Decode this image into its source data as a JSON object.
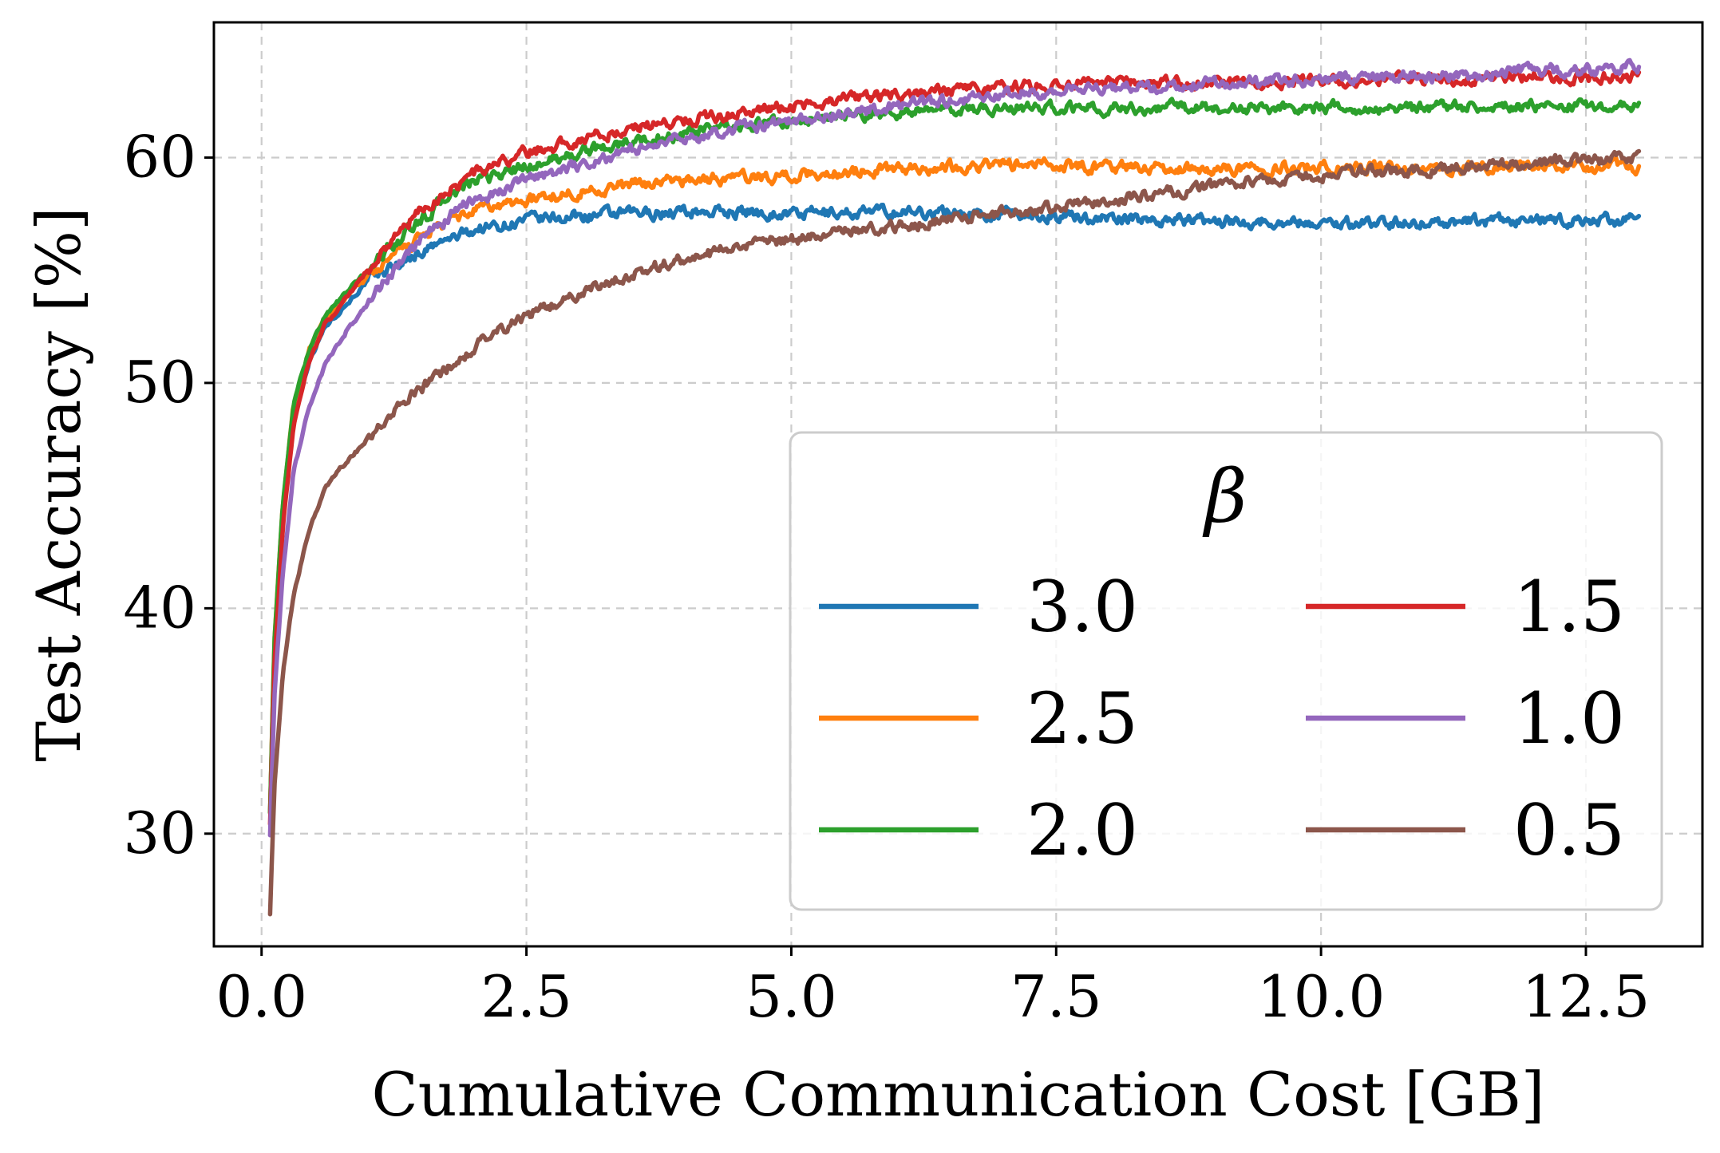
{
  "chart_data": {
    "type": "line",
    "title": "",
    "xlabel": "Cumulative Communication Cost [GB]",
    "ylabel": "Test Accuracy [%]",
    "xlim": [
      -0.45,
      13.6
    ],
    "ylim": [
      25,
      66
    ],
    "xticks": [
      0.0,
      2.5,
      5.0,
      7.5,
      10.0,
      12.5
    ],
    "xtick_labels": [
      "0.0",
      "2.5",
      "5.0",
      "7.5",
      "10.0",
      "12.5"
    ],
    "yticks": [
      30,
      40,
      50,
      60
    ],
    "ytick_labels": [
      "30",
      "40",
      "50",
      "60"
    ],
    "grid": true,
    "legend": {
      "title": "β",
      "position": "lower-right",
      "columns": 2
    },
    "x": [
      0.08,
      0.12,
      0.2,
      0.3,
      0.45,
      0.6,
      0.8,
      1.0,
      1.25,
      1.5,
      1.75,
      2.0,
      2.5,
      3.0,
      3.5,
      4.0,
      4.5,
      5.0,
      6.0,
      7.0,
      8.0,
      9.0,
      10.0,
      11.0,
      12.0,
      13.0
    ],
    "series": [
      {
        "name": "3.0",
        "color": "#1f77b4",
        "values": [
          31,
          38,
          44,
          48.5,
          51,
          52.5,
          53.5,
          54.5,
          55.2,
          55.8,
          56.3,
          56.8,
          57.2,
          57.4,
          57.5,
          57.6,
          57.6,
          57.5,
          57.6,
          57.5,
          57.3,
          57.2,
          57.1,
          57.1,
          57.2,
          57.2
        ]
      },
      {
        "name": "2.5",
        "color": "#ff7f0e",
        "values": [
          31,
          38.5,
          44.5,
          49,
          51.5,
          52.8,
          53.8,
          54.7,
          55.6,
          56.4,
          57.1,
          57.6,
          58.1,
          58.5,
          58.8,
          59.0,
          59.1,
          59.2,
          59.5,
          59.7,
          59.6,
          59.5,
          59.6,
          59.5,
          59.6,
          59.6
        ]
      },
      {
        "name": "2.0",
        "color": "#2ca02c",
        "values": [
          31,
          38.5,
          44.5,
          49,
          51.5,
          53,
          54,
          55,
          56.2,
          57.2,
          58.2,
          58.9,
          59.6,
          60.2,
          60.7,
          61.0,
          61.4,
          61.6,
          62.0,
          62.2,
          62.2,
          62.2,
          62.2,
          62.2,
          62.3,
          62.3
        ]
      },
      {
        "name": "1.5",
        "color": "#d62728",
        "values": [
          30.5,
          37.5,
          43.5,
          48,
          51,
          52.6,
          53.8,
          55.0,
          56.5,
          57.6,
          58.5,
          59.3,
          60.2,
          60.8,
          61.3,
          61.7,
          62.0,
          62.3,
          62.8,
          63.1,
          63.3,
          63.3,
          63.4,
          63.5,
          63.6,
          63.6
        ]
      },
      {
        "name": "1.0",
        "color": "#9467bd",
        "values": [
          30,
          36,
          41.5,
          46,
          49,
          50.8,
          52.3,
          53.5,
          55.0,
          56.3,
          57.3,
          58.1,
          59.0,
          59.7,
          60.3,
          60.9,
          61.3,
          61.6,
          62.3,
          62.8,
          63.1,
          63.3,
          63.5,
          63.6,
          63.8,
          64.0
        ]
      },
      {
        "name": "0.5",
        "color": "#8c564b",
        "values": [
          26.5,
          32,
          37,
          40.5,
          43.5,
          45.3,
          46.5,
          47.5,
          48.7,
          49.7,
          50.6,
          51.6,
          53.0,
          54.0,
          54.9,
          55.5,
          56.0,
          56.4,
          57.0,
          57.5,
          58.1,
          58.7,
          59.2,
          59.5,
          59.8,
          59.9
        ]
      }
    ]
  }
}
